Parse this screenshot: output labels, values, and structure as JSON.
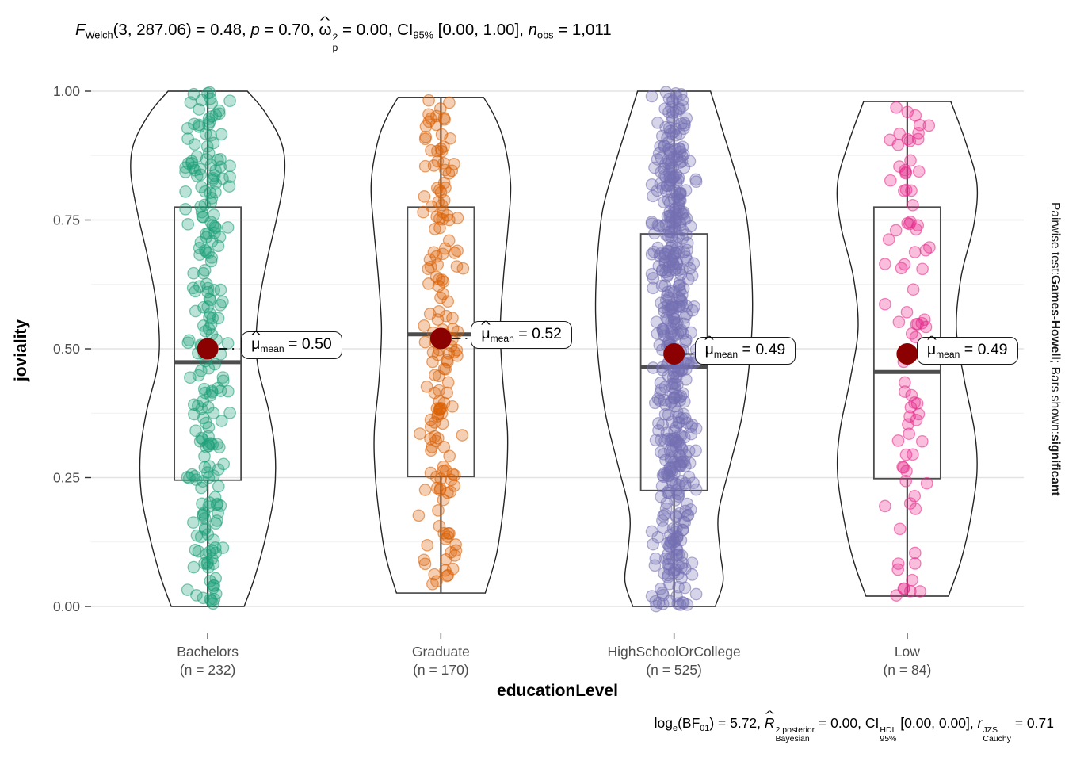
{
  "chart_data": {
    "type": "violin",
    "subtype": "violin+box+jittered-points (ggstatsplot ggbetweenstats)",
    "title_segments": [
      {
        "t": "F",
        "italic": true,
        "sub": "Welch"
      },
      {
        "t": "(3, 287.06) = 0.48, "
      },
      {
        "t": "p",
        "italic": true
      },
      {
        "t": " = 0.70, "
      },
      {
        "t": "ω",
        "hat": true,
        "sup": "2",
        "sub": "p"
      },
      {
        "t": " = 0.00, "
      },
      {
        "t": "CI",
        "sub": "95%"
      },
      {
        "t": " [0.00, 1.00], "
      },
      {
        "t": "n",
        "italic": true,
        "sub": "obs"
      },
      {
        "t": " = 1,011"
      }
    ],
    "caption_segments": [
      {
        "t": "log",
        "sub": "e"
      },
      {
        "t": "(BF",
        "sub": "01"
      },
      {
        "t": ") = 5.72, "
      },
      {
        "t": "R",
        "italic": true,
        "hat": true,
        "sup": "2 posterior",
        "sub": "Bayesian"
      },
      {
        "t": " = 0.00, "
      },
      {
        "t": "CI",
        "sup": "HDI",
        "sub": "95%"
      },
      {
        "t": " [0.00, 0.00], "
      },
      {
        "t": "r",
        "italic": true,
        "sup": "JZS",
        "sub": "Cauchy"
      },
      {
        "t": " = 0.71"
      }
    ],
    "pairwise_annotation_segments": [
      {
        "t": "Pairwise test: "
      },
      {
        "t": "Games-Howell",
        "bold": true
      },
      {
        "t": "; Bars shown: "
      },
      {
        "t": "significant",
        "bold": true
      }
    ],
    "x_label": "educationLevel",
    "y_label": "joviality",
    "ylim": [
      0,
      1
    ],
    "y_ticks": [
      {
        "label": "1.00",
        "v": 1.0
      },
      {
        "label": "0.75",
        "v": 0.75
      },
      {
        "label": "0.50",
        "v": 0.5
      },
      {
        "label": "0.25",
        "v": 0.25
      },
      {
        "label": "0.00",
        "v": 0.0
      }
    ],
    "groups": [
      {
        "category": "Bachelors",
        "count_label": "(n = 232)",
        "n": 232,
        "color": "#1B9E77",
        "stats": {
          "mean": 0.5,
          "median": 0.474,
          "q1": 0.245,
          "q3": 0.775,
          "whisker_low": 0.0,
          "whisker_high": 1.0
        },
        "mean_label_segments": [
          {
            "t": "μ",
            "hat": true,
            "sub": "mean"
          },
          {
            "t": " = 0.50"
          }
        ],
        "label_dx": 42,
        "violin_profile": [
          [
            0.0,
            46
          ],
          [
            0.06,
            60
          ],
          [
            0.14,
            74
          ],
          [
            0.22,
            84
          ],
          [
            0.3,
            85
          ],
          [
            0.38,
            77
          ],
          [
            0.46,
            64
          ],
          [
            0.52,
            61
          ],
          [
            0.6,
            66
          ],
          [
            0.68,
            76
          ],
          [
            0.76,
            88
          ],
          [
            0.84,
            97
          ],
          [
            0.9,
            93
          ],
          [
            0.96,
            72
          ],
          [
            1.0,
            50
          ]
        ]
      },
      {
        "category": "Graduate",
        "count_label": "(n = 170)",
        "n": 170,
        "color": "#D95F02",
        "stats": {
          "mean": 0.52,
          "median": 0.528,
          "q1": 0.252,
          "q3": 0.775,
          "whisker_low": 0.026,
          "whisker_high": 0.988
        },
        "mean_label_segments": [
          {
            "t": "μ",
            "hat": true,
            "sub": "mean"
          },
          {
            "t": " = 0.52"
          }
        ],
        "label_dx": 38,
        "violin_profile": [
          [
            0.026,
            56
          ],
          [
            0.1,
            70
          ],
          [
            0.18,
            78
          ],
          [
            0.26,
            83
          ],
          [
            0.34,
            84
          ],
          [
            0.44,
            78
          ],
          [
            0.54,
            75
          ],
          [
            0.64,
            79
          ],
          [
            0.74,
            85
          ],
          [
            0.82,
            88
          ],
          [
            0.9,
            80
          ],
          [
            0.95,
            68
          ],
          [
            0.988,
            54
          ]
        ]
      },
      {
        "category": "HighSchoolOrCollege",
        "count_label": "(n = 525)",
        "n": 525,
        "color": "#7570B3",
        "stats": {
          "mean": 0.49,
          "median": 0.464,
          "q1": 0.225,
          "q3": 0.723,
          "whisker_low": 0.0,
          "whisker_high": 1.0
        },
        "mean_label_segments": [
          {
            "t": "μ",
            "hat": true,
            "sub": "mean"
          },
          {
            "t": " = 0.49"
          }
        ],
        "label_dx": 26,
        "violin_profile": [
          [
            0.0,
            52
          ],
          [
            0.05,
            62
          ],
          [
            0.11,
            58
          ],
          [
            0.18,
            56
          ],
          [
            0.27,
            70
          ],
          [
            0.37,
            86
          ],
          [
            0.47,
            95
          ],
          [
            0.57,
            99
          ],
          [
            0.67,
            97
          ],
          [
            0.77,
            90
          ],
          [
            0.86,
            74
          ],
          [
            0.93,
            60
          ],
          [
            1.0,
            46
          ]
        ]
      },
      {
        "category": "Low",
        "count_label": "(n = 84)",
        "n": 84,
        "color": "#E7298A",
        "stats": {
          "mean": 0.49,
          "median": 0.455,
          "q1": 0.248,
          "q3": 0.775,
          "whisker_low": 0.02,
          "whisker_high": 0.98
        },
        "mean_label_segments": [
          {
            "t": "μ",
            "hat": true,
            "sub": "mean"
          },
          {
            "t": " = 0.49"
          }
        ],
        "label_dx": 12,
        "violin_profile": [
          [
            0.02,
            52
          ],
          [
            0.09,
            68
          ],
          [
            0.17,
            80
          ],
          [
            0.26,
            88
          ],
          [
            0.34,
            85
          ],
          [
            0.44,
            72
          ],
          [
            0.54,
            62
          ],
          [
            0.64,
            68
          ],
          [
            0.74,
            84
          ],
          [
            0.82,
            88
          ],
          [
            0.9,
            74
          ],
          [
            0.98,
            55
          ]
        ]
      }
    ],
    "style": {
      "mean_dot_color": "#8B0000",
      "box_color": "#4D4D4D",
      "violin_outline_color": "#242424",
      "grid_major": "#E3E3E3",
      "grid_minor": "#F1F1F1",
      "tick_mark_color": "#333333",
      "tick_text_color": "#4D4D4D",
      "point_fill_opacity": 0.3,
      "point_stroke_opacity": 0.55,
      "background": "#FFFFFF"
    }
  }
}
